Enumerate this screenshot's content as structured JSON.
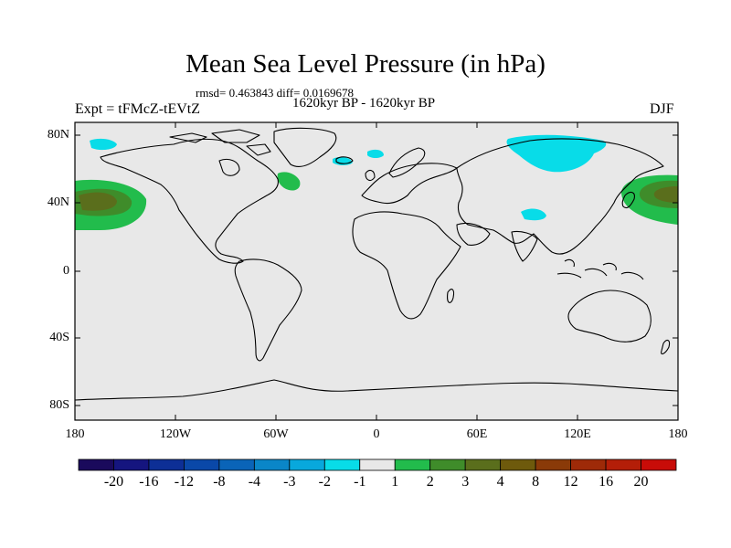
{
  "title": "Mean Sea Level Pressure (in hPa)",
  "stats": "rmsd= 0.463843 diff= 0.0169678",
  "period": "1620kyr BP - 1620kyr BP",
  "experiment": "Expt = tFMcZ-tEVtZ",
  "season": "DJF",
  "axes": {
    "y_ticks": [
      "80N",
      "40N",
      "0",
      "40S",
      "80S"
    ],
    "x_ticks": [
      "180",
      "120W",
      "60W",
      "0",
      "60E",
      "120E",
      "180"
    ]
  },
  "colorbar": {
    "labels": [
      "-20",
      "-16",
      "-12",
      "-8",
      "-4",
      "-3",
      "-2",
      "-1",
      "1",
      "2",
      "3",
      "4",
      "8",
      "12",
      "16",
      "20"
    ],
    "colors": [
      "#1a0a5c",
      "#15157f",
      "#0d2f96",
      "#0a48a8",
      "#0a64b8",
      "#0a86c8",
      "#08a8dc",
      "#08dce8",
      "#e8e8e8",
      "#22bc4c",
      "#3f8c2a",
      "#5a6e1c",
      "#6e5a0c",
      "#8a3a08",
      "#9e2a08",
      "#b41e08",
      "#c80c08"
    ]
  },
  "colors": {
    "ocean": "#e8e8e8",
    "neg_light": "#08dce8",
    "pos_light": "#22bc4c",
    "pos_mid": "#3f8c2a",
    "pos_dark": "#5a6e1c"
  }
}
